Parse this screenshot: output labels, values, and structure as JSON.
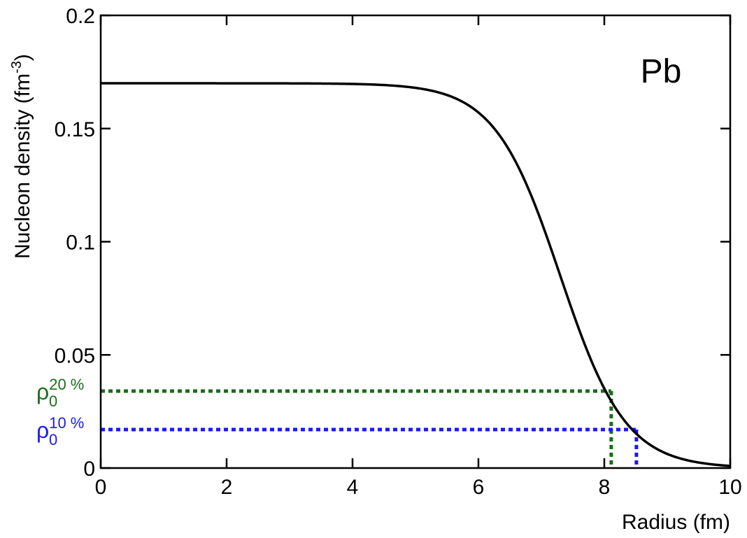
{
  "chart_data": {
    "type": "line",
    "annotation": "Pb",
    "xlabel": "Radius (fm)",
    "ylabel": {
      "main": "Nucleon density (fm",
      "sup": "-3",
      "close": ")"
    },
    "xlim": [
      0,
      10
    ],
    "ylim": [
      0,
      0.2
    ],
    "x_ticks": [
      "0",
      "2",
      "4",
      "6",
      "8",
      "10"
    ],
    "y_ticks": [
      "0",
      "0.05",
      "0.1",
      "0.15",
      "0.2"
    ],
    "grid": false,
    "legend": "none",
    "series": [
      {
        "color": "#000000",
        "function": "woods-saxon",
        "rho0": 0.17,
        "R": 7.3,
        "a": 0.52,
        "x_range": [
          0,
          10
        ]
      }
    ],
    "markers": [
      {
        "label_main": "ρ",
        "label_sub": "0",
        "label_sup": "20 %",
        "color": "#1a6e1a",
        "y": 0.034,
        "x": 8.11
      },
      {
        "label_main": "ρ",
        "label_sub": "0",
        "label_sup": "10 %",
        "color": "#1a1aee",
        "y": 0.017,
        "x": 8.51
      }
    ]
  }
}
